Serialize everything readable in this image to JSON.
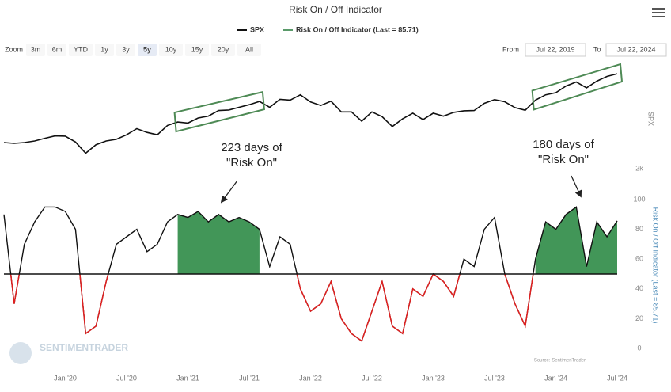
{
  "ui": {
    "zoom": {
      "label": "Zoom",
      "buttons": [
        "3m",
        "6m",
        "YTD",
        "1y",
        "3y",
        "5y",
        "10y",
        "15y",
        "20y",
        "All"
      ],
      "selected": "5y"
    },
    "from": {
      "label": "From",
      "value": "Jul 22, 2019"
    },
    "to": {
      "label": "To",
      "value": "Jul 22, 2024"
    },
    "watermark": "SENTIMENTRADER",
    "source": "Source: SentimenTrader"
  },
  "chart_data": [
    {
      "type": "line",
      "title": "Risk On / Off Indicator",
      "y_label": "SPX",
      "x": [
        "2019-07",
        "2019-08",
        "2019-09",
        "2019-10",
        "2019-11",
        "2019-12",
        "2020-01",
        "2020-02",
        "2020-03",
        "2020-04",
        "2020-05",
        "2020-06",
        "2020-07",
        "2020-08",
        "2020-09",
        "2020-10",
        "2020-11",
        "2020-12",
        "2021-01",
        "2021-02",
        "2021-03",
        "2021-04",
        "2021-05",
        "2021-06",
        "2021-07",
        "2021-08",
        "2021-09",
        "2021-10",
        "2021-11",
        "2021-12",
        "2022-01",
        "2022-02",
        "2022-03",
        "2022-04",
        "2022-05",
        "2022-06",
        "2022-07",
        "2022-08",
        "2022-09",
        "2022-10",
        "2022-11",
        "2022-12",
        "2023-01",
        "2023-02",
        "2023-03",
        "2023-04",
        "2023-05",
        "2023-06",
        "2023-07",
        "2023-08",
        "2023-09",
        "2023-10",
        "2023-11",
        "2023-12",
        "2024-01",
        "2024-02",
        "2024-03",
        "2024-04",
        "2024-05",
        "2024-06",
        "2024-07"
      ],
      "series": [
        {
          "name": "SPX",
          "color": "#111111",
          "values": [
            2980,
            2950,
            2980,
            3040,
            3140,
            3230,
            3220,
            3000,
            2580,
            2900,
            3040,
            3100,
            3270,
            3500,
            3360,
            3270,
            3620,
            3750,
            3710,
            3900,
            3970,
            4180,
            4200,
            4300,
            4400,
            4520,
            4300,
            4600,
            4570,
            4770,
            4500,
            4370,
            4530,
            4130,
            4130,
            3780,
            4130,
            3950,
            3580,
            3870,
            4080,
            3840,
            4080,
            3970,
            4110,
            4170,
            4180,
            4450,
            4590,
            4510,
            4290,
            4190,
            4570,
            4770,
            4850,
            5100,
            5250,
            5030,
            5280,
            5460,
            5560
          ]
        }
      ],
      "ylim": [
        2000,
        5800
      ],
      "yticks": [
        {
          "value": 2000,
          "label": "2k"
        }
      ],
      "highlight_ranges": [
        [
          "2020-12",
          "2021-08"
        ],
        [
          "2023-11",
          "2024-07"
        ]
      ],
      "highlight_color": "#4e8a55"
    },
    {
      "type": "line",
      "y_label": "Risk On / Off Indicator (Last = 85.71)",
      "x": [
        "2019-07",
        "2019-08",
        "2019-09",
        "2019-10",
        "2019-11",
        "2019-12",
        "2020-01",
        "2020-02",
        "2020-03",
        "2020-04",
        "2020-05",
        "2020-06",
        "2020-07",
        "2020-08",
        "2020-09",
        "2020-10",
        "2020-11",
        "2020-12",
        "2021-01",
        "2021-02",
        "2021-03",
        "2021-04",
        "2021-05",
        "2021-06",
        "2021-07",
        "2021-08",
        "2021-09",
        "2021-10",
        "2021-11",
        "2021-12",
        "2022-01",
        "2022-02",
        "2022-03",
        "2022-04",
        "2022-05",
        "2022-06",
        "2022-07",
        "2022-08",
        "2022-09",
        "2022-10",
        "2022-11",
        "2022-12",
        "2023-01",
        "2023-02",
        "2023-03",
        "2023-04",
        "2023-05",
        "2023-06",
        "2023-07",
        "2023-08",
        "2023-09",
        "2023-10",
        "2023-11",
        "2023-12",
        "2024-01",
        "2024-02",
        "2024-03",
        "2024-04",
        "2024-05",
        "2024-06",
        "2024-07"
      ],
      "series": [
        {
          "name": "Risk On / Off Indicator (Last = 85.71)",
          "color": "#5a9a6a",
          "line_color": "#111111",
          "below_color": "#e02020",
          "values": [
            90,
            30,
            70,
            85,
            95,
            95,
            92,
            80,
            10,
            15,
            45,
            70,
            75,
            80,
            65,
            70,
            85,
            90,
            88,
            92,
            85,
            90,
            85,
            88,
            85,
            80,
            55,
            75,
            70,
            40,
            25,
            30,
            45,
            20,
            10,
            5,
            25,
            45,
            15,
            10,
            40,
            35,
            50,
            45,
            35,
            60,
            55,
            80,
            88,
            50,
            30,
            15,
            60,
            85,
            80,
            90,
            95,
            55,
            85,
            75,
            85.71
          ]
        }
      ],
      "threshold": 50,
      "fill_ranges": [
        [
          "2020-12",
          "2021-08"
        ],
        [
          "2023-11",
          "2024-07"
        ]
      ],
      "fill_color": "#2e8b46",
      "ylim": [
        0,
        100
      ],
      "yticks": [
        0,
        20,
        40,
        60,
        80,
        100
      ],
      "xticks": [
        {
          "value": "2020-01",
          "label": "Jan '20"
        },
        {
          "value": "2020-07",
          "label": "Jul '20"
        },
        {
          "value": "2021-01",
          "label": "Jan '21"
        },
        {
          "value": "2021-07",
          "label": "Jul '21"
        },
        {
          "value": "2022-01",
          "label": "Jan '22"
        },
        {
          "value": "2022-07",
          "label": "Jul '22"
        },
        {
          "value": "2023-01",
          "label": "Jan '23"
        },
        {
          "value": "2023-07",
          "label": "Jul '23"
        },
        {
          "value": "2024-01",
          "label": "Jan '24"
        },
        {
          "value": "2024-07",
          "label": "Jul '24"
        }
      ],
      "annotations": [
        {
          "lines": [
            "223 days of",
            "\"Risk On\""
          ]
        },
        {
          "lines": [
            "180 days of",
            "\"Risk On\""
          ]
        }
      ]
    }
  ]
}
